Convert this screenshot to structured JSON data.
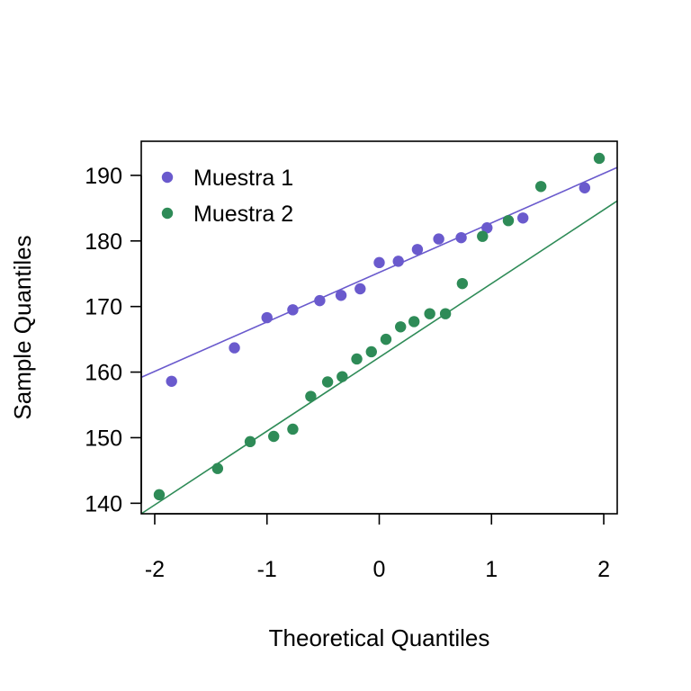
{
  "chart_data": {
    "type": "scatter",
    "title": "",
    "xlabel": "Theoretical Quantiles",
    "ylabel": "Sample Quantiles",
    "xlim": [
      -2.12,
      2.12
    ],
    "ylim": [
      138.4,
      195.2
    ],
    "xticks": [
      -2,
      -1,
      0,
      1,
      2
    ],
    "yticks": [
      140,
      150,
      160,
      170,
      180,
      190
    ],
    "grid": false,
    "legend_position": "top-left",
    "series": [
      {
        "name": "Muestra 1",
        "color": "#6a5acd",
        "x": [
          -1.85,
          -1.29,
          -1.0,
          -0.77,
          -0.53,
          -0.34,
          -0.17,
          0.0,
          0.17,
          0.34,
          0.53,
          0.73,
          0.96,
          1.28,
          1.83
        ],
        "y": [
          158.6,
          163.7,
          168.3,
          169.5,
          170.9,
          171.7,
          172.7,
          176.7,
          176.9,
          178.7,
          180.3,
          180.5,
          182.0,
          183.5,
          188.1
        ],
        "reference_line": {
          "x": [
            -2.12,
            2.12
          ],
          "y": [
            159.2,
            191.2
          ]
        }
      },
      {
        "name": "Muestra 2",
        "color": "#2e8b57",
        "x": [
          -1.96,
          -1.44,
          -1.15,
          -0.94,
          -0.77,
          -0.61,
          -0.46,
          -0.33,
          -0.2,
          -0.07,
          0.06,
          0.19,
          0.31,
          0.45,
          0.59,
          0.74,
          0.92,
          1.15,
          1.44,
          1.96
        ],
        "y": [
          141.3,
          145.3,
          149.4,
          150.2,
          151.3,
          156.3,
          158.5,
          159.3,
          162.0,
          163.1,
          165.0,
          166.9,
          167.7,
          168.9,
          168.9,
          173.5,
          180.7,
          183.1,
          188.3,
          192.6
        ],
        "reference_line": {
          "x": [
            -2.12,
            2.12
          ],
          "y": [
            138.4,
            186.1
          ]
        }
      }
    ]
  }
}
